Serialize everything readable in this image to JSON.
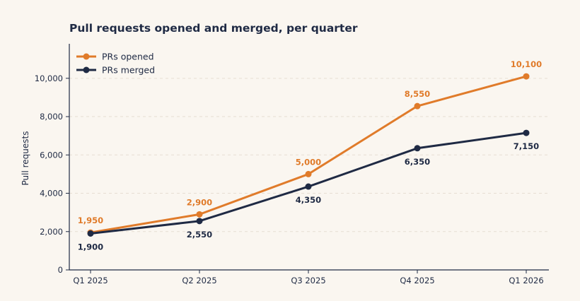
{
  "chart_data": {
    "type": "line",
    "title": "Pull requests opened and merged, per quarter",
    "xlabel": "",
    "ylabel": "Pull requests",
    "categories": [
      "Q1 2025",
      "Q2 2025",
      "Q3 2025",
      "Q4 2025",
      "Q1 2026"
    ],
    "ylim": [
      0,
      11800
    ],
    "yticks": [
      0,
      2000,
      4000,
      6000,
      8000,
      10000
    ],
    "ytick_labels": [
      "0",
      "2,000",
      "4,000",
      "6,000",
      "8,000",
      "10,000"
    ],
    "grid": true,
    "legend_position": "top-left",
    "series": [
      {
        "name": "PRs opened",
        "color": "#e07b2a",
        "values": [
          1950,
          2900,
          5000,
          8550,
          10100
        ],
        "labels": [
          "1,950",
          "2,900",
          "5,000",
          "8,550",
          "10,100"
        ],
        "label_position": "above"
      },
      {
        "name": "PRs merged",
        "color": "#1f2a44",
        "values": [
          1900,
          2550,
          4350,
          6350,
          7150
        ],
        "labels": [
          "1,900",
          "2,550",
          "4,350",
          "6,350",
          "7,150"
        ],
        "label_position": "below"
      }
    ]
  }
}
